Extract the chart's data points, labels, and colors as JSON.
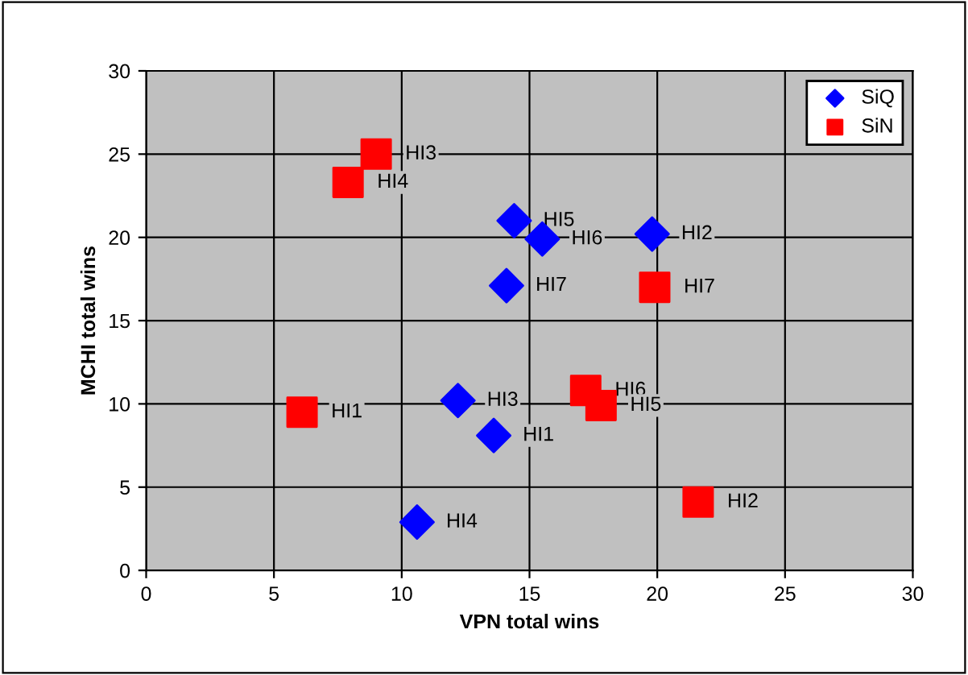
{
  "chart_data": {
    "type": "scatter",
    "xlabel": "VPN total wins",
    "ylabel": "MCHI total wins",
    "xlim": [
      0,
      30
    ],
    "ylim": [
      0,
      30
    ],
    "xticks": [
      0,
      5,
      10,
      15,
      20,
      25,
      30
    ],
    "yticks": [
      0,
      5,
      10,
      15,
      20,
      25,
      30
    ],
    "grid": true,
    "legend": "top right",
    "series": [
      {
        "name": "SiQ",
        "color": "#0000ff",
        "marker": "diamond",
        "x": [
          14.4,
          15.5,
          19.8,
          14.1,
          12.2,
          13.6,
          10.6
        ],
        "values": [
          21.0,
          19.9,
          20.2,
          17.1,
          10.2,
          8.1,
          2.9
        ]
      },
      {
        "name": "SiN",
        "color": "#ff0000",
        "marker": "square",
        "x": [
          9.0,
          7.9,
          19.9,
          6.1,
          17.2,
          17.8,
          21.6
        ],
        "values": [
          25.0,
          23.3,
          17.0,
          9.5,
          10.8,
          9.9,
          4.1
        ]
      }
    ],
    "annotations": [
      {
        "text": "HI5",
        "x": 14.4,
        "y": 21.0
      },
      {
        "text": "HI6",
        "x": 15.5,
        "y": 19.9
      },
      {
        "text": "HI2",
        "x": 19.8,
        "y": 20.2
      },
      {
        "text": "HI7",
        "x": 14.1,
        "y": 17.1
      },
      {
        "text": "HI3",
        "x": 12.2,
        "y": 10.2
      },
      {
        "text": "HI1",
        "x": 13.6,
        "y": 8.1
      },
      {
        "text": "HI4",
        "x": 10.6,
        "y": 2.9
      },
      {
        "text": "HI3",
        "x": 9.0,
        "y": 25.0
      },
      {
        "text": "HI4",
        "x": 7.9,
        "y": 23.3
      },
      {
        "text": "HI7",
        "x": 19.9,
        "y": 17.0
      },
      {
        "text": "HI1",
        "x": 6.1,
        "y": 9.5
      },
      {
        "text": "HI6",
        "x": 17.2,
        "y": 10.8
      },
      {
        "text": "HI5",
        "x": 17.8,
        "y": 9.9
      },
      {
        "text": "HI2",
        "x": 21.6,
        "y": 4.1
      }
    ]
  }
}
